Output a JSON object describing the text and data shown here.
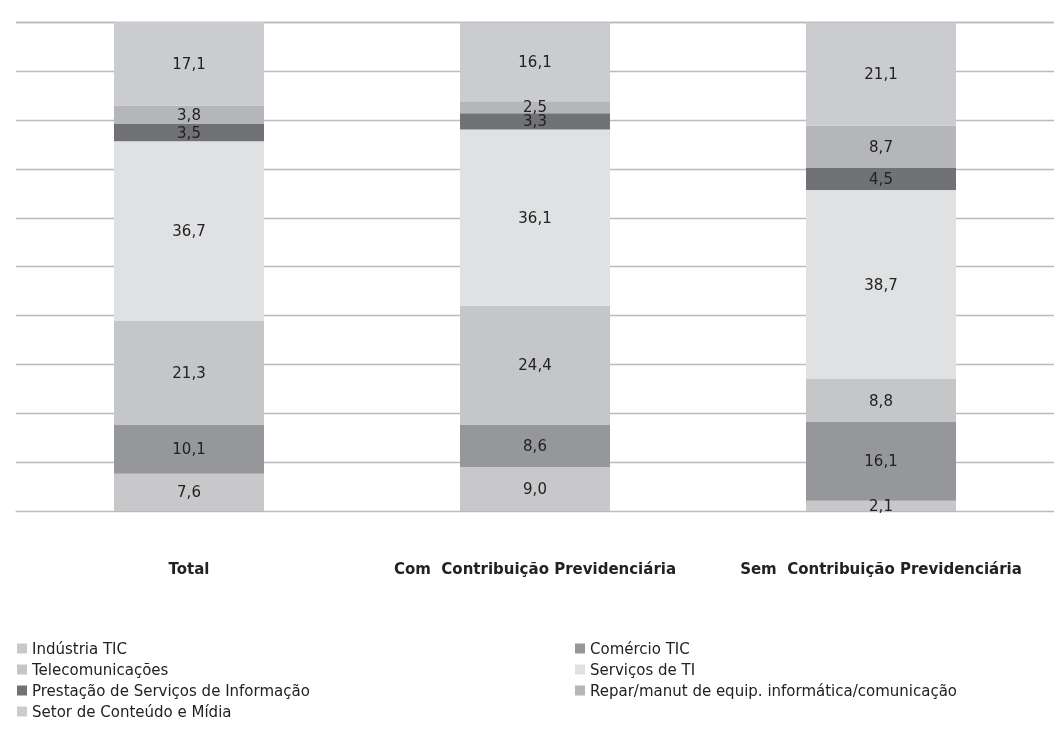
{
  "chart_data": {
    "type": "bar",
    "stacked": true,
    "categories": [
      "Total",
      "Com  Contribuição Previdenciária",
      "Sem  Contribuição Previdenciária"
    ],
    "series": [
      {
        "name": "Indústria TIC",
        "color": "#c8c8ca",
        "values": [
          7.6,
          9.0,
          2.1
        ],
        "value_labels": [
          "7,6",
          "9,0",
          "2,1"
        ]
      },
      {
        "name": "Comércio TIC",
        "color": "#96979a",
        "values": [
          10.1,
          8.6,
          16.1
        ],
        "value_labels": [
          "10,1",
          "8,6",
          "16,1"
        ]
      },
      {
        "name": "Telecomunicações",
        "color": "#c5c6c8",
        "values": [
          21.3,
          24.4,
          8.8
        ],
        "value_labels": [
          "21,3",
          "24,4",
          "8,8"
        ]
      },
      {
        "name": "Serviços de TI",
        "color": "#e0e1e3",
        "values": [
          36.7,
          36.1,
          38.7
        ],
        "value_labels": [
          "36,7",
          "36,1",
          "38,7"
        ]
      },
      {
        "name": "Prestação de Serviços de Informação",
        "color": "#717275",
        "values": [
          3.5,
          3.3,
          4.5
        ],
        "value_labels": [
          "3,5",
          "3,3",
          "4,5"
        ]
      },
      {
        "name": "Repar/manut de equip. informática/comunicação",
        "color": "#b5b6b9",
        "values": [
          3.8,
          2.5,
          8.7
        ],
        "value_labels": [
          "3,8",
          "2,5",
          "8,7"
        ]
      },
      {
        "name": "Setor de Conteúdo e Mídia",
        "color": "#cbcccf",
        "values": [
          17.1,
          16.1,
          21.1
        ],
        "value_labels": [
          "17,1",
          "16,1",
          "21,1"
        ]
      }
    ],
    "tick_labels": "x",
    "grid": "y",
    "legend": "bottom"
  }
}
